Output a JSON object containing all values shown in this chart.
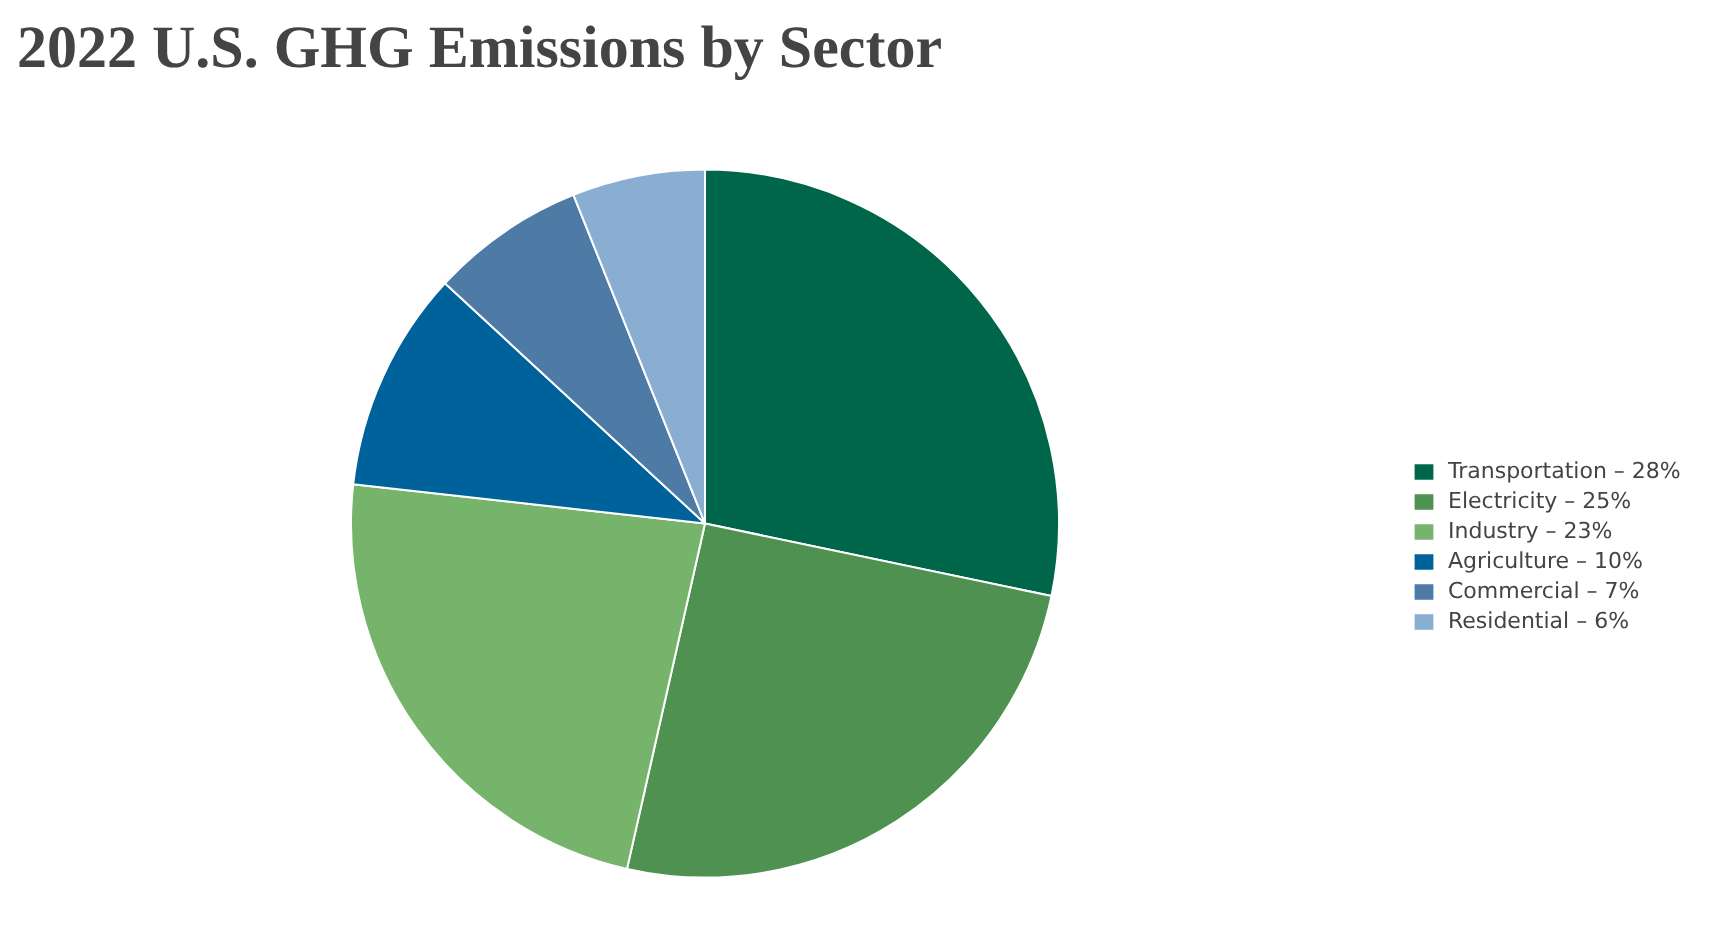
{
  "chart_data": {
    "type": "pie",
    "title": "2022 U.S. GHG Emissions by Sector",
    "categories": [
      "Transportation – 28%",
      "Electricity – 25%",
      "Industry – 23%",
      "Agriculture – 10%",
      "Commercial – 7%",
      "Residential – 6%"
    ],
    "values": [
      28,
      25,
      23,
      10,
      7,
      6
    ],
    "colors": [
      "#00664a",
      "#4e9150",
      "#77b46b",
      "#00629b",
      "#4e7aa6",
      "#8aadd2"
    ],
    "legend": "right"
  }
}
